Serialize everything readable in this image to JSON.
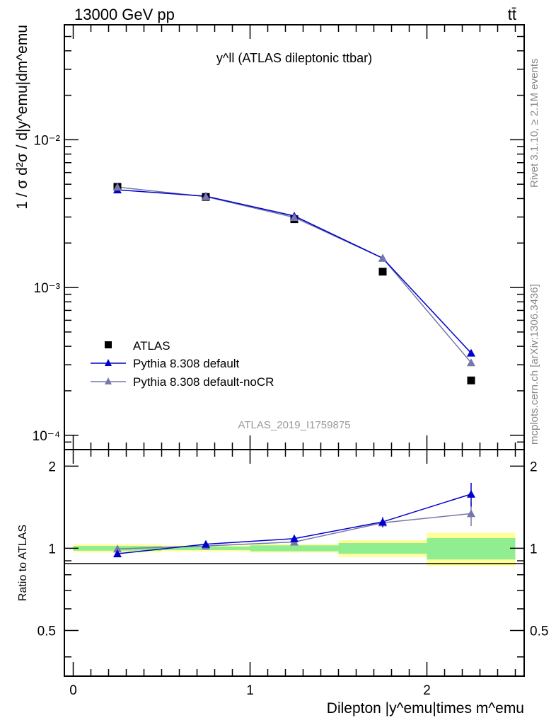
{
  "header": {
    "left": "13000 GeV pp",
    "right": "tt̄"
  },
  "side_labels": {
    "rivet": "Rivet 3.1.10, ≥ 2.1M events",
    "mcplots": "mcplots.cern.ch [arXiv:1306.3436]"
  },
  "colors": {
    "atlas": "#000000",
    "default": "#0000cc",
    "noCR": "#7777aa",
    "band_inner": "#90ee90",
    "band_outer": "#ffff99"
  },
  "chart_data": [
    {
      "type": "line",
      "panel": "main",
      "title": "y^ll (ATLAS dileptonic ttbar)",
      "ylabel": "1 / σ  d²σ / d|y^emu|dm^emu",
      "watermark": "ATLAS_2019_I1759875",
      "yscale": "log",
      "xlim": [
        -0.05,
        2.55
      ],
      "ylim": [
        8e-05,
        0.06
      ],
      "ytick_labels": [
        "10⁻⁴",
        "10⁻³",
        "10⁻²"
      ],
      "legend_position": "bottom-left",
      "x": [
        0.25,
        0.75,
        1.25,
        1.75,
        2.25
      ],
      "series": [
        {
          "name": "ATLAS",
          "marker": "square",
          "values": [
            0.0048,
            0.0041,
            0.0029,
            0.00128,
            0.000235
          ]
        },
        {
          "name": "Pythia 8.308 default",
          "marker": "triangle",
          "values": [
            0.00458,
            0.00415,
            0.00305,
            0.00158,
            0.00036
          ]
        },
        {
          "name": "Pythia 8.308 default-noCR",
          "marker": "triangle",
          "values": [
            0.00478,
            0.00412,
            0.00298,
            0.00158,
            0.00031
          ]
        }
      ]
    },
    {
      "type": "line",
      "panel": "ratio",
      "ylabel": "Ratio to ATLAS",
      "xlabel": "Dilepton |y^emu|times m^emu",
      "xlim": [
        -0.05,
        2.55
      ],
      "ylim": [
        0.34,
        2.3
      ],
      "ytick_labels": [
        "0.5",
        "1",
        "2"
      ],
      "xtick_labels": [
        "0",
        "1",
        "2"
      ],
      "x": [
        0.25,
        0.75,
        1.25,
        1.75,
        2.25
      ],
      "bin_edges": [
        0,
        0.5,
        1,
        1.5,
        2,
        2.5
      ],
      "band_inner": [
        0.98,
        0.985,
        0.975,
        0.955,
        0.91
      ],
      "band_outer": [
        0.965,
        0.975,
        0.965,
        0.93,
        0.86
      ],
      "series": [
        {
          "name": "Pythia 8.308 default",
          "values": [
            0.955,
            1.035,
            1.085,
            1.25,
            1.58
          ]
        },
        {
          "name": "Pythia 8.308 default-noCR",
          "values": [
            0.995,
            1.02,
            1.055,
            1.24,
            1.34
          ]
        }
      ]
    }
  ]
}
